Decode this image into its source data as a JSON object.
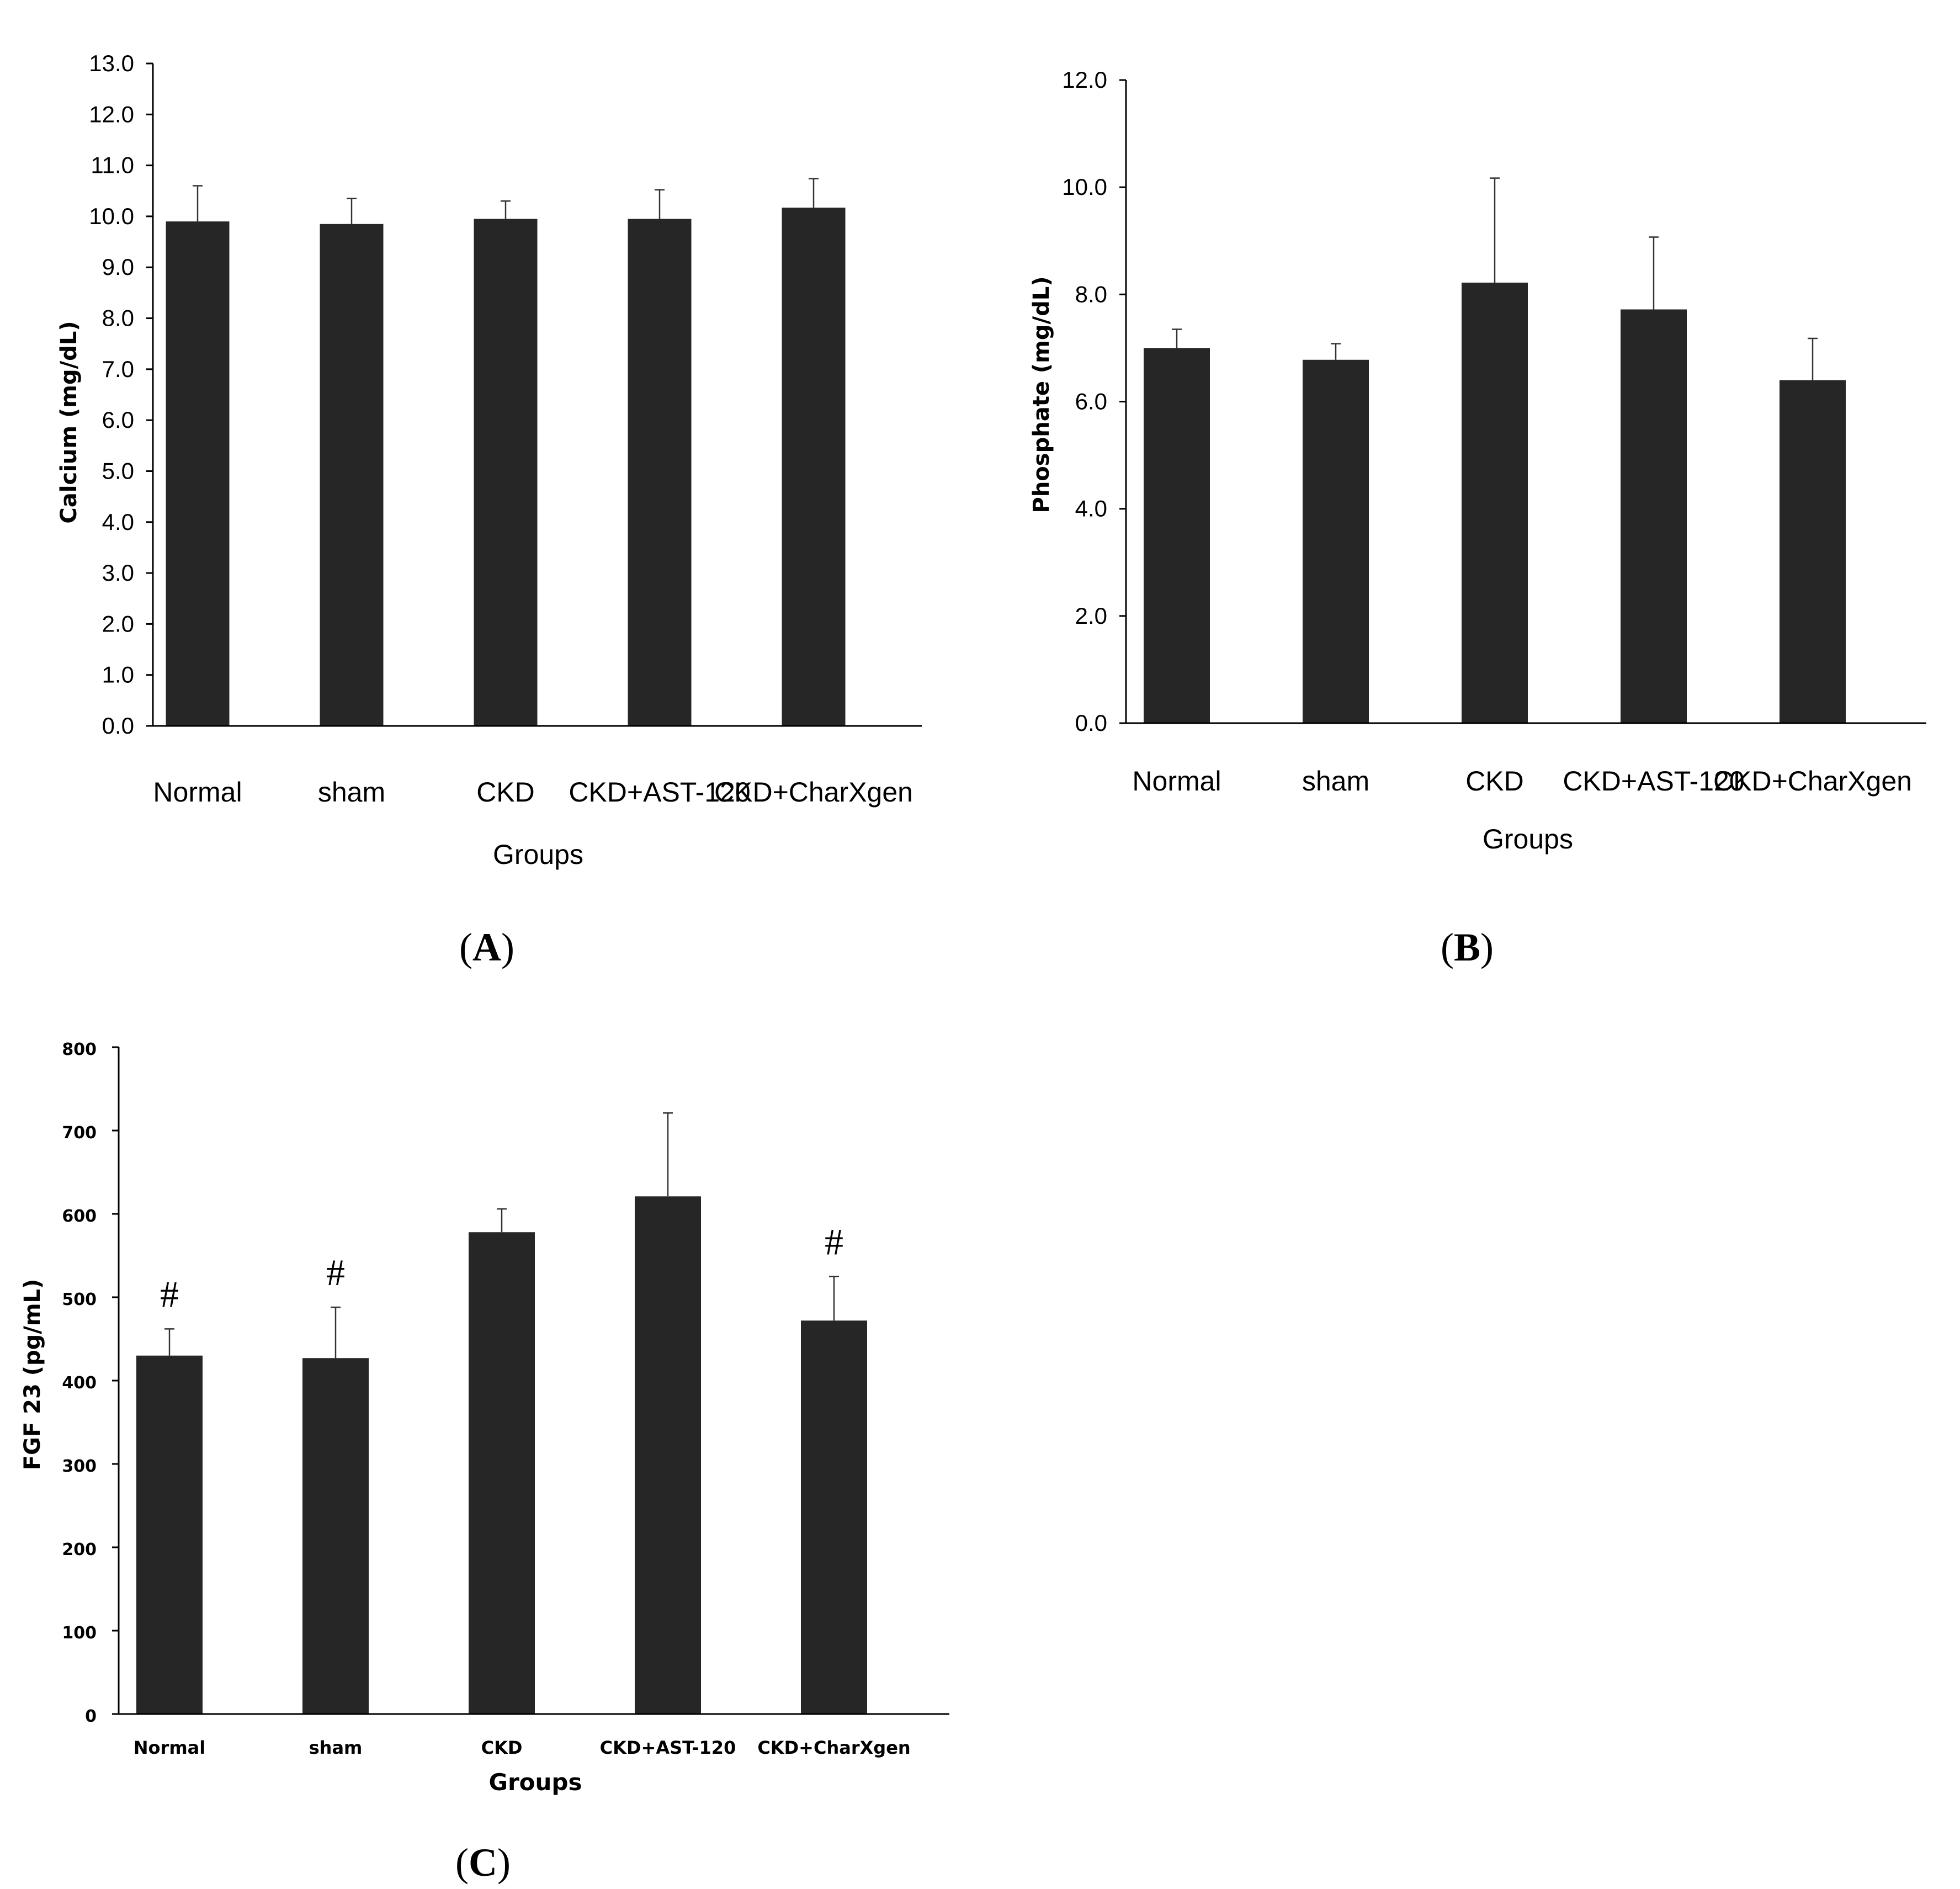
{
  "chart_data": [
    {
      "panel_label": "A",
      "type": "bar",
      "categories": [
        "Normal",
        "sham",
        "CKD",
        "CKD+AST-120",
        "CKD+CharXgen"
      ],
      "values": [
        9.9,
        9.85,
        9.95,
        9.95,
        10.17
      ],
      "errors": [
        0.7,
        0.5,
        0.35,
        0.57,
        0.57
      ],
      "xlabel": "Groups",
      "ylabel": "Calcium (mg/dL)",
      "ylim": [
        0,
        13
      ],
      "yticks": [
        "0.0",
        "1.0",
        "2.0",
        "3.0",
        "4.0",
        "5.0",
        "6.0",
        "7.0",
        "8.0",
        "9.0",
        "10.0",
        "11.0",
        "12.0",
        "13.0"
      ],
      "annotations": [
        "",
        "",
        "",
        "",
        ""
      ],
      "bar_color": "#262626",
      "grid": false
    },
    {
      "panel_label": "B",
      "type": "bar",
      "categories": [
        "Normal",
        "sham",
        "CKD",
        "CKD+AST-120",
        "CKD+CharXgen"
      ],
      "values": [
        7.0,
        6.78,
        8.22,
        7.72,
        6.4
      ],
      "errors": [
        0.35,
        0.3,
        1.95,
        1.35,
        0.78
      ],
      "xlabel": "Groups",
      "ylabel": "Phosphate (mg/dL)",
      "ylim": [
        0,
        12
      ],
      "yticks": [
        "0.0",
        "2.0",
        "4.0",
        "6.0",
        "8.0",
        "10.0",
        "12.0"
      ],
      "annotations": [
        "",
        "",
        "",
        "",
        ""
      ],
      "bar_color": "#262626",
      "grid": false
    },
    {
      "panel_label": "C",
      "type": "bar",
      "categories": [
        "Normal",
        "sham",
        "CKD",
        "CKD+AST-120",
        "CKD+CharXgen"
      ],
      "values": [
        430,
        427,
        578,
        621,
        472
      ],
      "errors": [
        32,
        61,
        28,
        100,
        53
      ],
      "xlabel": "Groups",
      "ylabel": "FGF 23 (pg/mL)",
      "ylim": [
        0,
        800
      ],
      "yticks": [
        "0",
        "100",
        "200",
        "300",
        "400",
        "500",
        "600",
        "700",
        "800"
      ],
      "annotations": [
        "#",
        "#",
        "",
        "",
        "#"
      ],
      "bar_color": "#262626",
      "grid": false
    }
  ]
}
